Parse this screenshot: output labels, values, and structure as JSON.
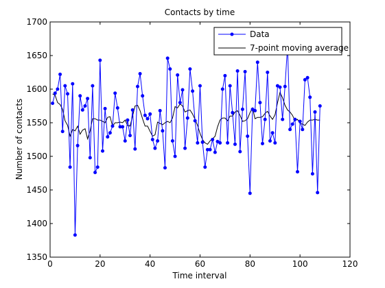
{
  "chart_data": {
    "type": "line",
    "title": "Contacts by time",
    "xlabel": "Time interval",
    "ylabel": "Number of contacts",
    "xlim": [
      0,
      120
    ],
    "ylim": [
      1350,
      1700
    ],
    "xticks": [
      0,
      20,
      40,
      60,
      80,
      100,
      120
    ],
    "yticks": [
      1350,
      1400,
      1450,
      1500,
      1550,
      1600,
      1650,
      1700
    ],
    "grid": false,
    "legend_position": "top-right",
    "series": [
      {
        "name": "Data",
        "color": "#0000ff",
        "marker": "dot",
        "x": [
          1,
          2,
          3,
          4,
          5,
          6,
          7,
          8,
          9,
          10,
          11,
          12,
          13,
          14,
          15,
          16,
          17,
          18,
          19,
          20,
          21,
          22,
          23,
          24,
          25,
          26,
          27,
          28,
          29,
          30,
          31,
          32,
          33,
          34,
          35,
          36,
          37,
          38,
          39,
          40,
          41,
          42,
          43,
          44,
          45,
          46,
          47,
          48,
          49,
          50,
          51,
          52,
          53,
          54,
          55,
          56,
          57,
          58,
          59,
          60,
          61,
          62,
          63,
          64,
          65,
          66,
          67,
          68,
          69,
          70,
          71,
          72,
          73,
          74,
          75,
          76,
          77,
          78,
          79,
          80,
          81,
          82,
          83,
          84,
          85,
          86,
          87,
          88,
          89,
          90,
          91,
          92,
          93,
          94,
          95,
          96,
          97,
          98,
          99,
          100,
          101,
          102,
          103,
          104,
          105,
          106,
          107,
          108
        ],
        "y": [
          1579,
          1594,
          1600,
          1622,
          1537,
          1605,
          1593,
          1484,
          1608,
          1383,
          1516,
          1590,
          1569,
          1575,
          1586,
          1498,
          1605,
          1476,
          1484,
          1643,
          1508,
          1571,
          1529,
          1535,
          1545,
          1594,
          1572,
          1544,
          1544,
          1523,
          1554,
          1531,
          1569,
          1511,
          1604,
          1623,
          1590,
          1561,
          1556,
          1563,
          1525,
          1512,
          1523,
          1568,
          1538,
          1483,
          1646,
          1630,
          1523,
          1500,
          1621,
          1580,
          1599,
          1512,
          1557,
          1630,
          1597,
          1553,
          1520,
          1605,
          1521,
          1484,
          1510,
          1510,
          1525,
          1506,
          1522,
          1520,
          1600,
          1620,
          1520,
          1605,
          1565,
          1518,
          1627,
          1507,
          1570,
          1626,
          1530,
          1445,
          1570,
          1568,
          1640,
          1580,
          1519,
          1555,
          1625,
          1523,
          1535,
          1520,
          1605,
          1603,
          1555,
          1604,
          1665,
          1540,
          1548,
          1555,
          1477,
          1552,
          1540,
          1614,
          1617,
          1588,
          1474,
          1566,
          1446,
          1575
        ]
      },
      {
        "name": "7-point moving average",
        "color": "#000000",
        "marker": "none",
        "x": [
          1,
          2,
          3,
          4,
          5,
          6,
          7,
          8,
          9,
          10,
          11,
          12,
          13,
          14,
          15,
          16,
          17,
          18,
          19,
          20,
          21,
          22,
          23,
          24,
          25,
          26,
          27,
          28,
          29,
          30,
          31,
          32,
          33,
          34,
          35,
          36,
          37,
          38,
          39,
          40,
          41,
          42,
          43,
          44,
          45,
          46,
          47,
          48,
          49,
          50,
          51,
          52,
          53,
          54,
          55,
          56,
          57,
          58,
          59,
          60,
          61,
          62,
          63,
          64,
          65,
          66,
          67,
          68,
          69,
          70,
          71,
          72,
          73,
          74,
          75,
          76,
          77,
          78,
          79,
          80,
          81,
          82,
          83,
          84,
          85,
          86,
          87,
          88,
          89,
          90,
          91,
          92,
          93,
          94,
          95,
          96,
          97,
          98,
          99,
          100,
          101,
          102,
          103,
          104,
          105,
          106,
          107,
          108
        ],
        "y": [
          1593,
          1591,
          1580,
          1577,
          1570,
          1553,
          1546,
          1530,
          1540,
          1538,
          1545,
          1533,
          1539,
          1541,
          1526,
          1538,
          1556,
          1556,
          1554,
          1554,
          1552,
          1550,
          1558,
          1559,
          1545,
          1550,
          1550,
          1551,
          1550,
          1554,
          1546,
          1545,
          1560,
          1575,
          1576,
          1568,
          1556,
          1545,
          1545,
          1537,
          1530,
          1532,
          1551,
          1549,
          1547,
          1550,
          1552,
          1550,
          1557,
          1574,
          1572,
          1578,
          1575,
          1566,
          1568,
          1569,
          1563,
          1555,
          1546,
          1534,
          1525,
          1520,
          1518,
          1523,
          1526,
          1530,
          1544,
          1554,
          1557,
          1557,
          1553,
          1560,
          1560,
          1566,
          1568,
          1561,
          1552,
          1553,
          1556,
          1565,
          1572,
          1556,
          1558,
          1558,
          1559,
          1564,
          1567,
          1560,
          1555,
          1562,
          1580,
          1595,
          1587,
          1576,
          1569,
          1566,
          1561,
          1553,
          1555,
          1549,
          1548,
          1546,
          1551,
          1554,
          1554,
          1555,
          1554,
          1554
        ]
      }
    ]
  }
}
